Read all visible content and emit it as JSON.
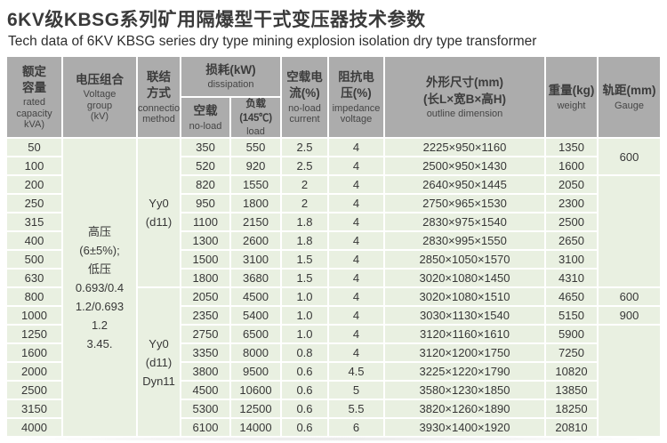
{
  "title": "6KV级KBSG系列矿用隔爆型干式变压器技术参数",
  "subtitle": "Tech data of 6KV KBSG series dry type mining explosion isolation dry type transformer",
  "colors": {
    "header_bg": "#ACACAC",
    "row_bg": "#E9F0E1",
    "grid": "#FFFFFF",
    "title_text": "#3A3A3A",
    "cell_text": "#373737"
  },
  "table": {
    "header": {
      "capacity": {
        "zh": "额定\n容量",
        "en": "rated\ncapacity\nkVA)"
      },
      "voltage": {
        "zh": "电压组合",
        "en": "Voltage\ngroup\n(kV)"
      },
      "connection": {
        "zh": "联结\n方式",
        "en": "connection\nmethod"
      },
      "dissipation": {
        "zh": "损耗(kW)",
        "en": "dissipation"
      },
      "no_load": {
        "zh": "空载",
        "en": "no-load"
      },
      "load": {
        "zh": "负载(145℃)",
        "en": "load"
      },
      "current": {
        "zh": "空载电\n流(%)",
        "en": "no-load\ncurrent"
      },
      "impedance": {
        "zh": "阻抗电\n压(%)",
        "en": "impedance\nvoltage"
      },
      "outline": {
        "zh": "外形尺寸(mm)\n(长L×宽B×高H)",
        "en": "outline dimension"
      },
      "weight": {
        "zh": "重量(kg)",
        "en": "weight"
      },
      "gauge": {
        "zh": "轨距(mm)",
        "en": "Gauge"
      }
    },
    "merged": {
      "voltage_lines": "高压\n(6±5%);\n低压\n0.693/0.4\n1.2/0.693\n1.2\n3.45.",
      "connection_top": "Yy0\n(d11)",
      "connection_bottom": "Yy0\n(d11)\nDyn11",
      "gauge_cells": [
        {
          "row": 0,
          "span": 2,
          "value": "600"
        },
        {
          "row": 2,
          "span": 6,
          "value": ""
        },
        {
          "row": 8,
          "span": 1,
          "value": "600"
        },
        {
          "row": 9,
          "span": 1,
          "value": "900"
        },
        {
          "row": 10,
          "span": 6,
          "value": ""
        }
      ]
    },
    "rows": [
      {
        "kva": "50",
        "no_load": "350",
        "load": "550",
        "current": "2.5",
        "impedance": "4",
        "dim": "2225×950×1160",
        "weight": "1350"
      },
      {
        "kva": "100",
        "no_load": "520",
        "load": "920",
        "current": "2.5",
        "impedance": "4",
        "dim": "2500×950×1430",
        "weight": "1600"
      },
      {
        "kva": "200",
        "no_load": "820",
        "load": "1550",
        "current": "2",
        "impedance": "4",
        "dim": "2640×950×1445",
        "weight": "2050"
      },
      {
        "kva": "250",
        "no_load": "950",
        "load": "1800",
        "current": "2",
        "impedance": "4",
        "dim": "2750×965×1530",
        "weight": "2300"
      },
      {
        "kva": "315",
        "no_load": "1100",
        "load": "2150",
        "current": "1.8",
        "impedance": "4",
        "dim": "2830×975×1540",
        "weight": "2500"
      },
      {
        "kva": "400",
        "no_load": "1300",
        "load": "2600",
        "current": "1.8",
        "impedance": "4",
        "dim": "2830×995×1550",
        "weight": "2650"
      },
      {
        "kva": "500",
        "no_load": "1500",
        "load": "3100",
        "current": "1.5",
        "impedance": "4",
        "dim": "2850×1050×1570",
        "weight": "3100"
      },
      {
        "kva": "630",
        "no_load": "1800",
        "load": "3680",
        "current": "1.5",
        "impedance": "4",
        "dim": "3020×1080×1450",
        "weight": "4310"
      },
      {
        "kva": "800",
        "no_load": "2050",
        "load": "4500",
        "current": "1.0",
        "impedance": "4",
        "dim": "3020×1080×1510",
        "weight": "4650"
      },
      {
        "kva": "1000",
        "no_load": "2350",
        "load": "5400",
        "current": "1.0",
        "impedance": "4",
        "dim": "3030×1130×1540",
        "weight": "5150"
      },
      {
        "kva": "1250",
        "no_load": "2750",
        "load": "6500",
        "current": "1.0",
        "impedance": "4",
        "dim": "3120×1160×1610",
        "weight": "5900"
      },
      {
        "kva": "1600",
        "no_load": "3350",
        "load": "8000",
        "current": "0.8",
        "impedance": "4",
        "dim": "3120×1200×1750",
        "weight": "7250"
      },
      {
        "kva": "2000",
        "no_load": "3800",
        "load": "9500",
        "current": "0.6",
        "impedance": "4.5",
        "dim": "3225×1220×1790",
        "weight": "10820"
      },
      {
        "kva": "2500",
        "no_load": "4500",
        "load": "10600",
        "current": "0.6",
        "impedance": "5",
        "dim": "3580×1230×1850",
        "weight": "13850"
      },
      {
        "kva": "3150",
        "no_load": "5300",
        "load": "12500",
        "current": "0.6",
        "impedance": "5.5",
        "dim": "3820×1260×1890",
        "weight": "18250"
      },
      {
        "kva": "4000",
        "no_load": "6100",
        "load": "14000",
        "current": "0.6",
        "impedance": "6",
        "dim": "3930×1400×1920",
        "weight": "20810"
      }
    ]
  }
}
